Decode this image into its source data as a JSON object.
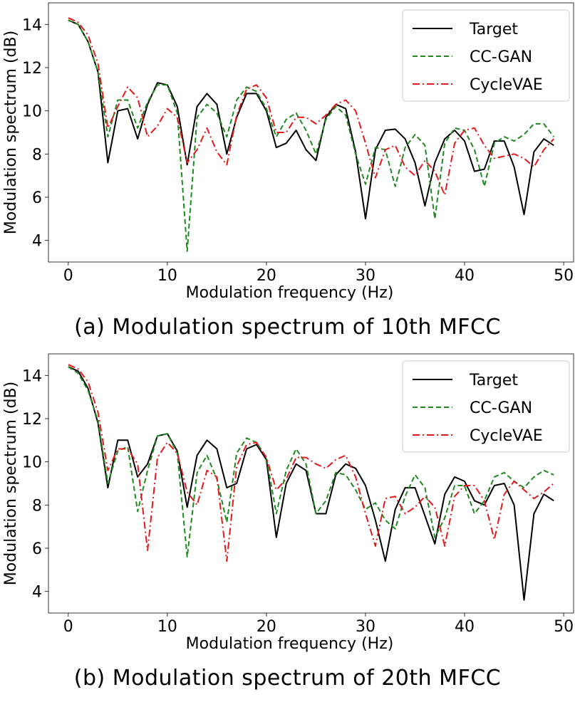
{
  "chart_data": [
    {
      "type": "line",
      "caption": "(a) Modulation spectrum of 10th MFCC",
      "xlabel": "Modulation frequency (Hz)",
      "ylabel": "Modulation spectrum (dB)",
      "xlim": [
        -2,
        51
      ],
      "ylim": [
        3,
        15
      ],
      "xticks": [
        0,
        10,
        20,
        30,
        40,
        50
      ],
      "yticks": [
        4,
        6,
        8,
        10,
        12,
        14
      ],
      "legend_position": "top-right",
      "x": [
        0,
        1,
        2,
        3,
        4,
        5,
        6,
        7,
        8,
        9,
        10,
        11,
        12,
        13,
        14,
        15,
        16,
        17,
        18,
        19,
        20,
        21,
        22,
        23,
        24,
        25,
        26,
        27,
        28,
        29,
        30,
        31,
        32,
        33,
        34,
        35,
        36,
        37,
        38,
        39,
        40,
        41,
        42,
        43,
        44,
        45,
        46,
        47,
        48,
        49
      ],
      "series": [
        {
          "name": "Target",
          "color": "#000000",
          "style": "solid",
          "values": [
            14.2,
            14.0,
            13.2,
            11.8,
            7.6,
            10.0,
            10.1,
            8.7,
            10.3,
            11.3,
            11.2,
            10.2,
            7.5,
            10.2,
            10.8,
            10.3,
            8.0,
            9.7,
            10.8,
            10.8,
            10.0,
            8.3,
            8.5,
            9.1,
            8.2,
            7.7,
            9.7,
            10.3,
            10.1,
            8.1,
            5.0,
            8.2,
            9.1,
            9.15,
            8.7,
            7.6,
            5.6,
            7.6,
            8.7,
            9.1,
            8.6,
            7.2,
            7.3,
            8.6,
            8.6,
            7.4,
            5.2,
            8.1,
            8.7,
            8.4
          ]
        },
        {
          "name": "CC-GAN",
          "color": "#1f8a1f",
          "style": "dashed",
          "values": [
            14.2,
            14.0,
            13.2,
            11.8,
            8.8,
            10.5,
            10.5,
            9.2,
            10.4,
            11.2,
            11.2,
            9.9,
            3.5,
            9.7,
            10.3,
            9.9,
            8.8,
            10.5,
            11.1,
            10.9,
            10.1,
            8.8,
            9.6,
            9.9,
            9.1,
            8.0,
            9.6,
            10.2,
            9.8,
            8.0,
            6.6,
            8.3,
            8.2,
            6.5,
            8.3,
            8.9,
            8.4,
            5.0,
            8.5,
            9.2,
            9.1,
            8.2,
            6.5,
            8.5,
            8.8,
            8.6,
            8.9,
            9.4,
            9.4,
            8.8
          ]
        },
        {
          "name": "CycleVAE",
          "color": "#e31a1c",
          "style": "dashdot",
          "values": [
            14.3,
            14.1,
            13.5,
            12.2,
            9.2,
            10.2,
            11.1,
            10.6,
            8.8,
            9.3,
            10.1,
            9.7,
            7.6,
            8.2,
            9.2,
            8.1,
            7.5,
            9.8,
            11.0,
            11.2,
            10.6,
            9.0,
            9.0,
            9.7,
            9.7,
            9.4,
            9.8,
            10.3,
            10.5,
            10.0,
            8.5,
            6.9,
            8.2,
            8.4,
            7.4,
            7.0,
            7.7,
            7.2,
            6.1,
            8.5,
            9.1,
            9.2,
            8.4,
            7.8,
            7.9,
            8.0,
            7.8,
            7.4,
            8.2,
            8.7
          ]
        }
      ]
    },
    {
      "type": "line",
      "caption": "(b) Modulation spectrum of 20th MFCC",
      "xlabel": "Modulation frequency (Hz)",
      "ylabel": "Modulation spectrum (dB)",
      "xlim": [
        -2,
        51
      ],
      "ylim": [
        3,
        15
      ],
      "xticks": [
        0,
        10,
        20,
        30,
        40,
        50
      ],
      "yticks": [
        4,
        6,
        8,
        10,
        12,
        14
      ],
      "legend_position": "top-right",
      "x": [
        0,
        1,
        2,
        3,
        4,
        5,
        6,
        7,
        8,
        9,
        10,
        11,
        12,
        13,
        14,
        15,
        16,
        17,
        18,
        19,
        20,
        21,
        22,
        23,
        24,
        25,
        26,
        27,
        28,
        29,
        30,
        31,
        32,
        33,
        34,
        35,
        36,
        37,
        38,
        39,
        40,
        41,
        42,
        43,
        44,
        45,
        46,
        47,
        48,
        49
      ],
      "series": [
        {
          "name": "Target",
          "color": "#000000",
          "style": "solid",
          "values": [
            14.4,
            14.2,
            13.4,
            11.8,
            8.8,
            11.0,
            11.0,
            9.3,
            9.9,
            11.2,
            11.3,
            10.5,
            7.9,
            10.3,
            11.0,
            10.6,
            8.8,
            9.0,
            10.6,
            10.8,
            10.1,
            6.5,
            9.0,
            9.9,
            9.6,
            7.6,
            7.6,
            9.4,
            9.9,
            9.7,
            8.9,
            7.3,
            5.4,
            7.8,
            8.8,
            8.8,
            7.5,
            6.2,
            8.5,
            9.3,
            9.1,
            8.2,
            8.0,
            8.9,
            9.0,
            8.0,
            3.6,
            7.6,
            8.5,
            8.2
          ]
        },
        {
          "name": "CC-GAN",
          "color": "#1f8a1f",
          "style": "dashed",
          "values": [
            14.4,
            14.1,
            13.3,
            11.9,
            9.0,
            10.5,
            10.7,
            7.7,
            9.6,
            11.2,
            11.3,
            10.4,
            5.6,
            9.5,
            10.3,
            9.2,
            7.2,
            10.4,
            11.1,
            10.9,
            10.2,
            7.6,
            9.6,
            10.6,
            9.9,
            7.6,
            8.2,
            9.5,
            9.4,
            8.7,
            7.8,
            8.1,
            7.3,
            6.9,
            8.4,
            9.4,
            8.8,
            6.5,
            7.4,
            8.9,
            8.9,
            7.6,
            8.2,
            9.3,
            9.5,
            9.1,
            8.8,
            9.3,
            9.6,
            9.4
          ]
        },
        {
          "name": "CycleVAE",
          "color": "#e31a1c",
          "style": "dashdot",
          "values": [
            14.5,
            14.3,
            13.7,
            12.3,
            9.6,
            10.6,
            10.6,
            9.9,
            5.9,
            10.2,
            10.9,
            10.4,
            8.6,
            8.0,
            9.6,
            9.3,
            5.4,
            9.8,
            10.8,
            10.9,
            10.2,
            8.7,
            9.2,
            10.2,
            10.2,
            9.9,
            9.7,
            10.1,
            10.3,
            9.3,
            7.6,
            6.1,
            8.3,
            8.4,
            7.6,
            7.9,
            8.4,
            7.9,
            6.1,
            8.4,
            8.9,
            8.9,
            8.2,
            6.4,
            8.5,
            9.1,
            8.7,
            8.3,
            8.6,
            9.0
          ]
        }
      ]
    }
  ]
}
